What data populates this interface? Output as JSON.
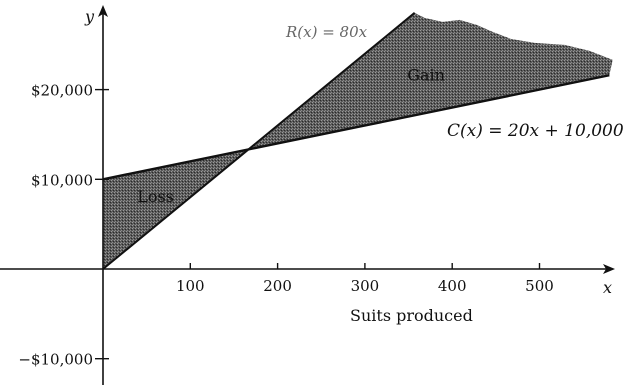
{
  "chart_data": {
    "type": "line",
    "x_axis": {
      "name": "x",
      "label": "Suits produced",
      "ticks": [
        100,
        200,
        300,
        400,
        500
      ],
      "tick_labels": [
        "100",
        "200",
        "300",
        "400",
        "500"
      ],
      "range": [
        0,
        570
      ]
    },
    "y_axis": {
      "name": "y",
      "ticks": [
        20000,
        10000,
        -10000
      ],
      "tick_labels": [
        "$20,000",
        "$10,000",
        "−$10,000"
      ],
      "range": [
        -12000,
        28000
      ]
    },
    "series": [
      {
        "name": "R(x) = 80x",
        "slope": 80,
        "intercept": 0,
        "x_end": 357
      },
      {
        "name": "C(x) = 20x + 10,000",
        "slope": 20,
        "intercept": 10000,
        "x_end": 580
      }
    ],
    "break_even": {
      "x": 166.7,
      "y": 13333
    },
    "regions": [
      {
        "label": "Loss",
        "x": 35,
        "y": 8000
      },
      {
        "label": "Gain",
        "x": 330,
        "y": 22000
      }
    ]
  }
}
